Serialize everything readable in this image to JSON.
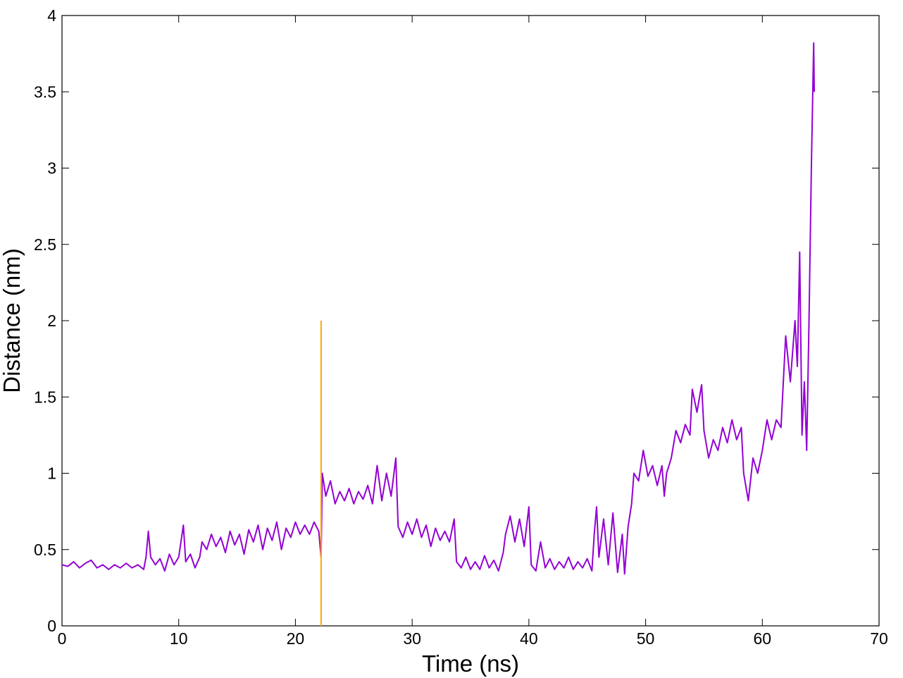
{
  "chart_data": {
    "type": "line",
    "x_label": "Time (ns)",
    "y_label": "Distance (nm)",
    "xlim": [
      0,
      70
    ],
    "xticks": [
      0,
      10,
      20,
      30,
      40,
      50,
      60,
      70
    ],
    "ylim": [
      0,
      4
    ],
    "yticks": [
      0,
      0.5,
      1,
      1.5,
      2,
      2.5,
      3,
      3.5,
      4
    ],
    "grid": false,
    "series": [
      {
        "color": "#9400d3",
        "x": [
          0,
          0.5,
          1,
          1.5,
          2,
          2.5,
          3,
          3.5,
          4,
          4.5,
          5,
          5.5,
          6,
          6.5,
          7,
          7.2,
          7.4,
          7.6,
          8,
          8.4,
          8.8,
          9.2,
          9.6,
          10,
          10.4,
          10.6,
          11,
          11.4,
          11.8,
          12,
          12.4,
          12.8,
          13.2,
          13.6,
          14,
          14.4,
          14.8,
          15.2,
          15.6,
          16,
          16.4,
          16.8,
          17.2,
          17.6,
          18,
          18.4,
          18.8,
          19.2,
          19.6,
          20,
          20.4,
          20.8,
          21.2,
          21.6,
          22,
          22.2,
          22.3,
          22.6,
          23,
          23.4,
          23.8,
          24.2,
          24.6,
          25,
          25.4,
          25.8,
          26.2,
          26.6,
          27,
          27.4,
          27.8,
          28.2,
          28.6,
          28.8,
          29.2,
          29.6,
          30,
          30.4,
          30.8,
          31.2,
          31.6,
          32,
          32.4,
          32.8,
          33.2,
          33.6,
          33.8,
          34.2,
          34.6,
          35,
          35.4,
          35.8,
          36.2,
          36.6,
          37,
          37.4,
          37.8,
          38,
          38.4,
          38.8,
          39.2,
          39.6,
          40,
          40.2,
          40.6,
          41,
          41.4,
          41.8,
          42.2,
          42.6,
          43,
          43.4,
          43.8,
          44.2,
          44.6,
          45,
          45.4,
          45.6,
          45.8,
          46,
          46.4,
          46.8,
          47.2,
          47.6,
          48,
          48.2,
          48.5,
          48.8,
          49,
          49.4,
          49.8,
          50.2,
          50.6,
          51,
          51.4,
          51.6,
          51.8,
          52.2,
          52.6,
          53,
          53.4,
          53.8,
          54,
          54.4,
          54.8,
          55,
          55.4,
          55.8,
          56.2,
          56.6,
          57,
          57.4,
          57.8,
          58.2,
          58.4,
          58.8,
          59.2,
          59.6,
          60,
          60.4,
          60.8,
          61.2,
          61.6,
          61.8,
          62,
          62.4,
          62.8,
          63,
          63.2,
          63.4,
          63.6,
          63.8,
          64,
          64.2,
          64.4,
          64.45
        ],
        "values": [
          0.4,
          0.39,
          0.42,
          0.38,
          0.41,
          0.43,
          0.38,
          0.4,
          0.37,
          0.4,
          0.38,
          0.41,
          0.38,
          0.4,
          0.37,
          0.45,
          0.62,
          0.45,
          0.4,
          0.44,
          0.36,
          0.47,
          0.4,
          0.45,
          0.66,
          0.42,
          0.47,
          0.38,
          0.45,
          0.55,
          0.5,
          0.6,
          0.52,
          0.58,
          0.48,
          0.62,
          0.53,
          0.6,
          0.47,
          0.63,
          0.55,
          0.66,
          0.5,
          0.64,
          0.56,
          0.68,
          0.5,
          0.64,
          0.58,
          0.68,
          0.6,
          0.66,
          0.6,
          0.68,
          0.62,
          0.45,
          1.0,
          0.85,
          0.95,
          0.8,
          0.88,
          0.82,
          0.9,
          0.8,
          0.88,
          0.83,
          0.92,
          0.8,
          1.05,
          0.82,
          1.0,
          0.85,
          1.1,
          0.65,
          0.58,
          0.68,
          0.6,
          0.7,
          0.58,
          0.66,
          0.52,
          0.64,
          0.56,
          0.62,
          0.55,
          0.7,
          0.42,
          0.38,
          0.45,
          0.37,
          0.42,
          0.37,
          0.46,
          0.38,
          0.43,
          0.36,
          0.48,
          0.6,
          0.72,
          0.55,
          0.7,
          0.52,
          0.78,
          0.4,
          0.36,
          0.55,
          0.38,
          0.44,
          0.37,
          0.42,
          0.38,
          0.45,
          0.37,
          0.42,
          0.38,
          0.44,
          0.36,
          0.6,
          0.78,
          0.45,
          0.7,
          0.4,
          0.74,
          0.35,
          0.6,
          0.34,
          0.65,
          0.8,
          1.0,
          0.95,
          1.15,
          0.98,
          1.05,
          0.92,
          1.05,
          0.85,
          1.0,
          1.1,
          1.28,
          1.2,
          1.32,
          1.25,
          1.55,
          1.4,
          1.58,
          1.28,
          1.1,
          1.22,
          1.15,
          1.3,
          1.2,
          1.35,
          1.22,
          1.3,
          1.0,
          0.82,
          1.1,
          1.0,
          1.15,
          1.35,
          1.22,
          1.35,
          1.3,
          1.6,
          1.9,
          1.6,
          2.0,
          1.7,
          2.45,
          1.25,
          1.6,
          1.15,
          2.0,
          3.0,
          3.82,
          3.5
        ]
      },
      {
        "color": "#ffa500",
        "x": [
          22.2,
          22.2
        ],
        "values": [
          0,
          2
        ]
      }
    ]
  }
}
